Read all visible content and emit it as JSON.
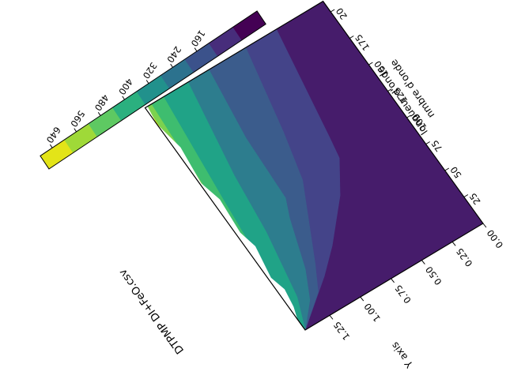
{
  "chart_data": {
    "type": "heatmap",
    "subtype": "filled-contour",
    "title": "DTPMP DI+FeO.csv",
    "xlabel": "longueur d'onde",
    "ylabel": "Y axis",
    "x_axis_subtitle": "nmbre d'onde",
    "x_ticks": [
      "25",
      "50",
      "75",
      "100",
      "125",
      "150",
      "175",
      "20"
    ],
    "y_ticks": [
      "0.00",
      "0.25",
      "0.50",
      "0.75",
      "1.00",
      "1.25"
    ],
    "xlim": [
      0,
      210
    ],
    "ylim": [
      0,
      1.45
    ],
    "colorbar": {
      "ticks": [
        "640",
        "560",
        "480",
        "400",
        "320",
        "240",
        "160"
      ],
      "colormap": "viridis",
      "colors": [
        "#e3e418",
        "#9fd938",
        "#5ec962",
        "#2bb07f",
        "#21918c",
        "#2c728e",
        "#3b528b",
        "#472d7b",
        "#440154"
      ]
    },
    "color_levels": [
      "#461c6b",
      "#444489",
      "#3b5c8c",
      "#2d7d8e",
      "#20a387",
      "#3ebd6f",
      "#7cd24f",
      "#dde01a"
    ],
    "boundaries": [
      [
        [
          0,
          1.45
        ],
        [
          28,
          1.12
        ],
        [
          45,
          0.95
        ],
        [
          75,
          0.7
        ],
        [
          100,
          0.55
        ],
        [
          118,
          0.52
        ],
        [
          210,
          0.38
        ]
      ],
      [
        [
          0,
          1.45
        ],
        [
          20,
          1.22
        ],
        [
          40,
          1.12
        ],
        [
          80,
          0.94
        ],
        [
          100,
          0.85
        ],
        [
          140,
          0.76
        ],
        [
          210,
          0.63
        ]
      ],
      [
        [
          0,
          1.45
        ],
        [
          18,
          1.3
        ],
        [
          40,
          1.2
        ],
        [
          80,
          1.08
        ],
        [
          95,
          1.02
        ],
        [
          150,
          1.0
        ],
        [
          210,
          0.93
        ]
      ],
      [
        [
          0,
          1.45
        ],
        [
          25,
          1.36
        ],
        [
          80,
          1.27
        ],
        [
          130,
          1.22
        ],
        [
          210,
          1.1
        ]
      ],
      [
        [
          15,
          1.45
        ],
        [
          70,
          1.42
        ],
        [
          120,
          1.38
        ],
        [
          210,
          1.3
        ]
      ],
      [
        [
          110,
          1.45
        ],
        [
          210,
          1.4
        ]
      ],
      [
        [
          175,
          1.45
        ],
        [
          210,
          1.44
        ]
      ]
    ],
    "blank_edge": [
      [
        0,
        1.45
      ],
      [
        10,
        1.45
      ],
      [
        20,
        1.42
      ],
      [
        35,
        1.4
      ],
      [
        48,
        1.43
      ],
      [
        75,
        1.39
      ],
      [
        90,
        1.42
      ],
      [
        120,
        1.4
      ],
      [
        138,
        1.44
      ],
      [
        170,
        1.41
      ],
      [
        195,
        1.45
      ],
      [
        210,
        1.43
      ]
    ],
    "grid": false,
    "legend": "colorbar-top-left"
  }
}
